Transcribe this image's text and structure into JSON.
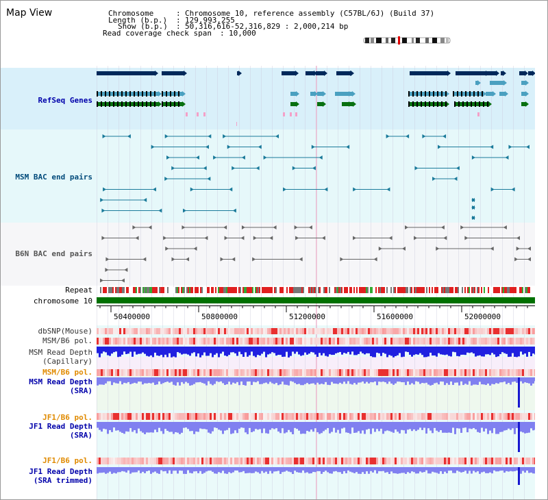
{
  "view_title": "Map View",
  "header": {
    "chromosome_label": "Chromosome",
    "chromosome_value": "Chromosome 10, reference assembly (C57BL/6J) (Build 37)",
    "length_label": "Length (b.p.)",
    "length_value": "129,993,255",
    "show_label": "Show (b.p.)",
    "show_value": "50,316,616-52,316,829 : 2,000,214 bp",
    "coverage_label": "Read coverage check span",
    "coverage_value": "10,000"
  },
  "tracks": {
    "refseq": "RefSeq Genes",
    "msm_bac": "MSM BAC end pairs",
    "b6n_bac": "B6N BAC end pairs",
    "repeat": "Repeat",
    "chromosome": "chromosome 10",
    "dbsnp": "dbSNP(Mouse)",
    "msm_b6_pol": "MSM/B6 pol.",
    "msm_depth_cap_1": "MSM Read Depth",
    "msm_depth_cap_2": "(Capillary)",
    "msm_b6_pol_2": "MSM/B6 pol.",
    "msm_depth_sra_1": "MSM Read Depth",
    "msm_depth_sra_2": "(SRA)",
    "jf1_b6_pol": "JF1/B6 pol.",
    "jf1_depth_sra_1": "JF1 Read Depth",
    "jf1_depth_sra_2": "(SRA)",
    "jf1_b6_pol_2": "JF1/B6 pol.",
    "jf1_depth_trim_1": "JF1 Read Depth",
    "jf1_depth_trim_2": "(SRA trimmed)"
  },
  "axis": {
    "ticks": [
      "50400000",
      "50800000",
      "51200000",
      "51600000",
      "52000000"
    ]
  },
  "colors": {
    "refseq_bg": "#d9f0fa",
    "msm_bac_bg": "#e6f8fa",
    "b6n_bg": "#f5f5f8",
    "depth_bg": "#e8f8f8",
    "chrom_green": "#007000",
    "gene_dark": "#00285a",
    "gene_teal": "#4aa0c0",
    "gene_green": "#087010",
    "bac_teal": "#1a7a9a",
    "depth_blue": "#2020e0",
    "depth_light_blue": "#8080f0"
  }
}
